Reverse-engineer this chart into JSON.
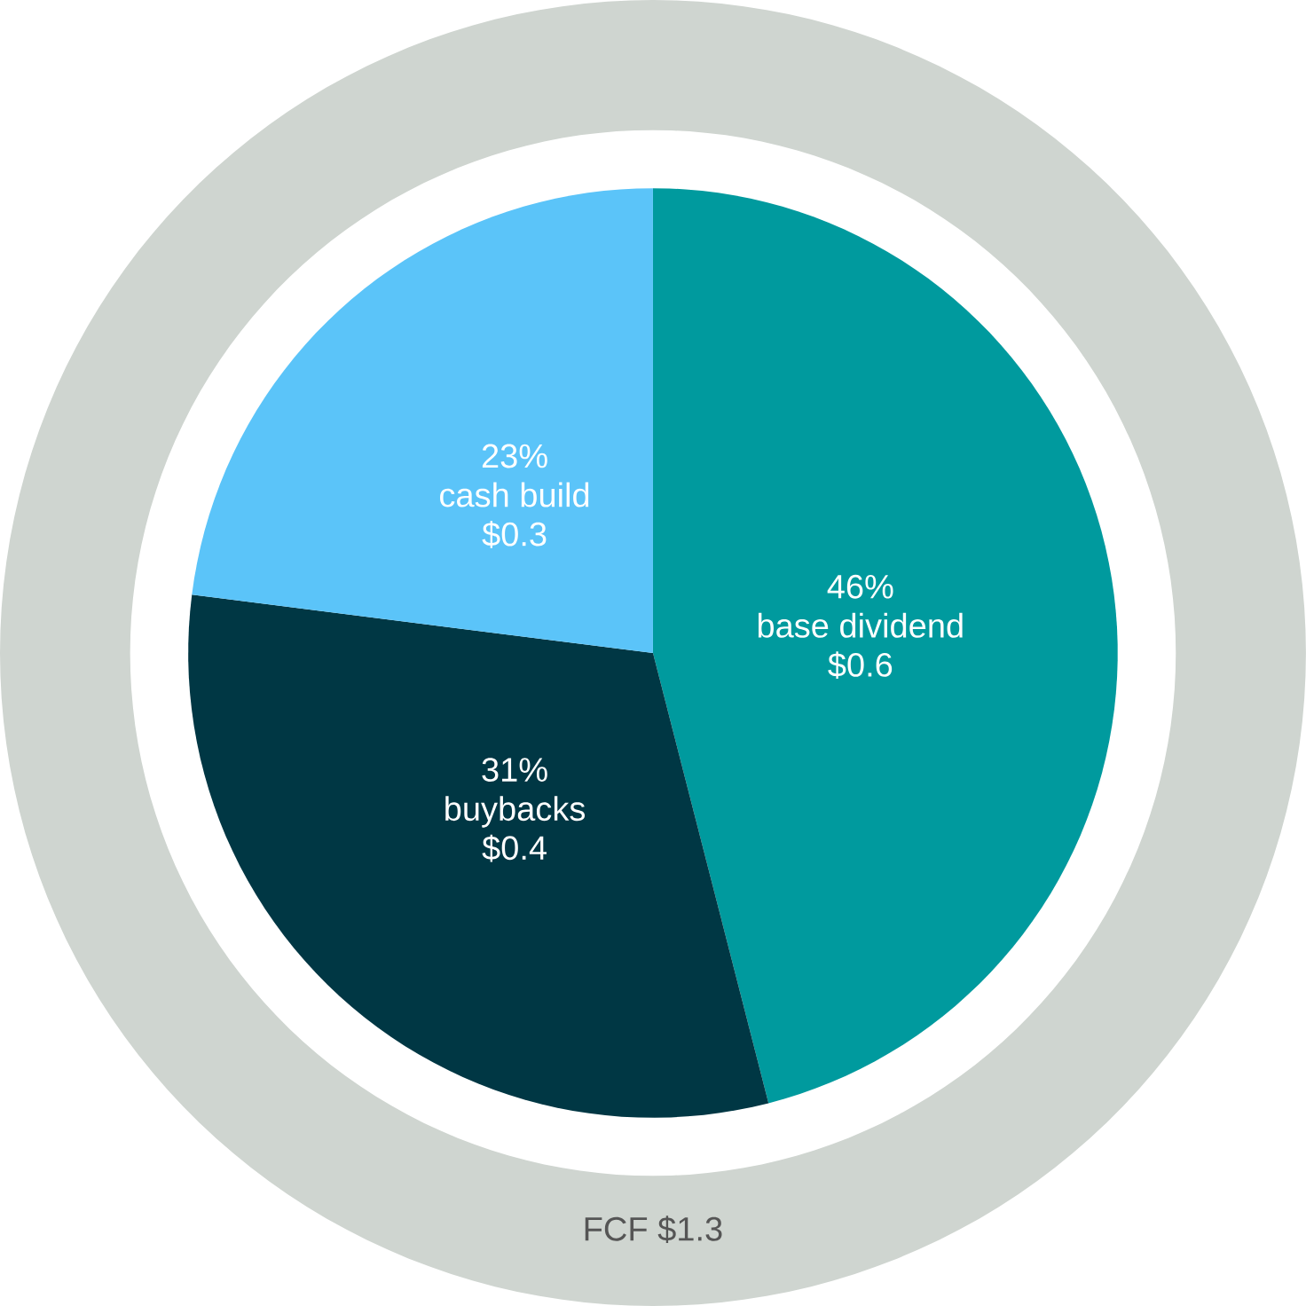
{
  "chart_data": {
    "type": "pie",
    "categories": [
      "base dividend",
      "buybacks",
      "cash build"
    ],
    "values": [
      46,
      31,
      23
    ],
    "colors": [
      "#009a9e",
      "#003744",
      "#5bc4f9"
    ],
    "value_labels": [
      "46%",
      "31%",
      "23%"
    ],
    "annotations": [
      {
        "text": "$0.6",
        "x": "base dividend"
      },
      {
        "text": "$0.4",
        "x": "buybacks"
      },
      {
        "text": "$0.3",
        "x": "cash build"
      },
      "FCF $1.3"
    ]
  }
}
